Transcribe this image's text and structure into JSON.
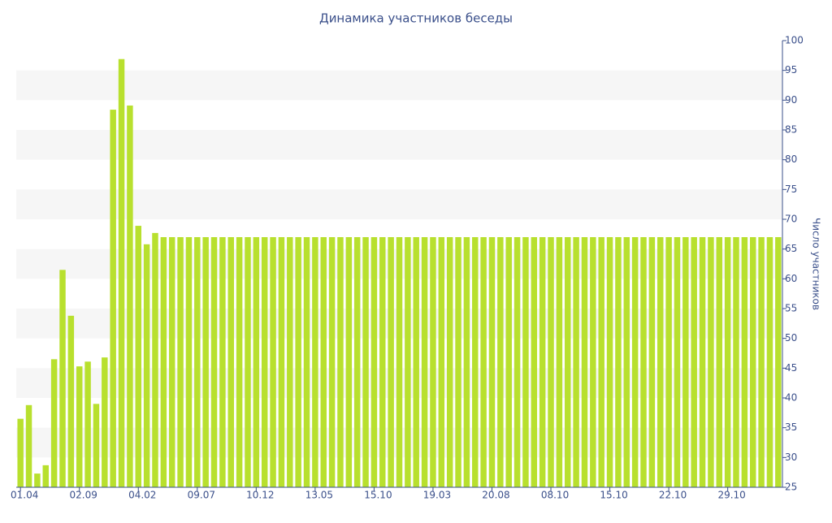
{
  "chart_data": {
    "type": "bar",
    "title": "Динамика участников беседы",
    "y_axis_label": "Число участников",
    "categories": [
      "01.04",
      null,
      null,
      null,
      null,
      null,
      null,
      "02.09",
      null,
      null,
      null,
      null,
      null,
      null,
      "04.02",
      null,
      null,
      null,
      null,
      null,
      null,
      "09.07",
      null,
      null,
      null,
      null,
      null,
      null,
      "10.12",
      null,
      null,
      null,
      null,
      null,
      null,
      "13.05",
      null,
      null,
      null,
      null,
      null,
      null,
      "15.10",
      null,
      null,
      null,
      null,
      null,
      null,
      "19.03",
      null,
      null,
      null,
      null,
      null,
      null,
      "20.08",
      null,
      null,
      null,
      null,
      null,
      null,
      "08.10",
      null,
      null,
      null,
      null,
      null,
      null,
      "15.10",
      null,
      null,
      null,
      null,
      null,
      null,
      "22.10",
      null,
      null,
      null,
      null,
      null,
      null,
      "29.10",
      null,
      null,
      null,
      null,
      null,
      null
    ],
    "values": [
      36.5,
      38.8,
      27.3,
      28.7,
      46.5,
      61.5,
      53.8,
      45.3,
      46.1,
      39,
      46.8,
      88.4,
      96.9,
      89.1,
      68.9,
      65.8,
      67.7,
      67,
      67,
      67,
      67,
      67,
      67,
      67,
      67,
      67,
      67,
      67,
      67,
      67,
      67,
      67,
      67,
      67,
      67,
      67,
      67,
      67,
      67,
      67,
      67,
      67,
      67,
      67,
      67,
      67,
      67,
      67,
      67,
      67,
      67,
      67,
      67,
      67,
      67,
      67,
      67,
      67,
      67,
      67,
      67,
      67,
      67,
      67,
      67,
      67,
      67,
      67,
      67,
      67,
      67,
      67,
      67,
      67,
      67,
      67,
      67,
      67,
      67,
      67,
      67,
      67,
      67,
      67,
      67,
      67,
      67,
      67,
      67,
      67,
      67
    ],
    "color": "#b8e02e",
    "ylim": [
      25,
      100
    ],
    "yticks": [
      25,
      30,
      35,
      40,
      45,
      50,
      55,
      60,
      65,
      70,
      75,
      80,
      85,
      90,
      95,
      100
    ],
    "grid": true,
    "y_axis_side": "right"
  }
}
